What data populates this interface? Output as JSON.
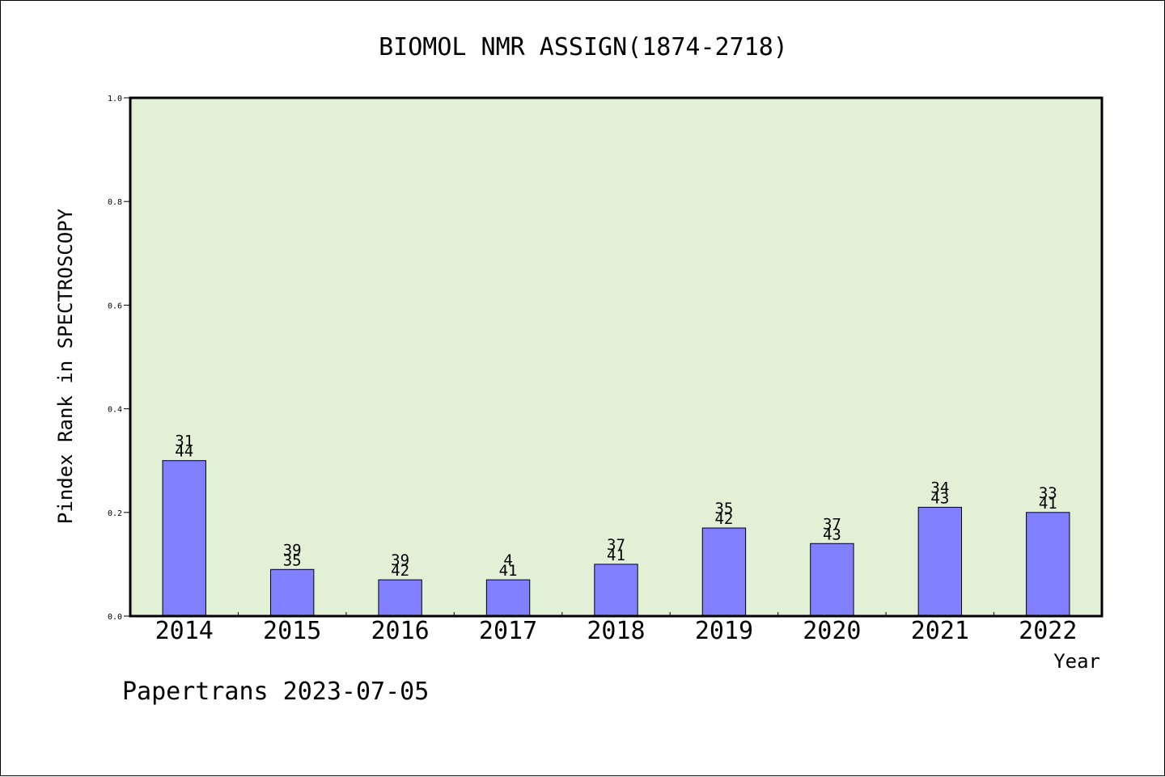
{
  "chart_data": {
    "type": "bar",
    "title": "BIOMOL NMR ASSIGN(1874-2718)",
    "xlabel": "Year",
    "ylabel": "Pindex Rank in SPECTROSCOPY",
    "ylim": [
      0,
      1.0
    ],
    "yticks": [
      "0.0",
      "0.2",
      "0.4",
      "0.6",
      "0.8",
      "1.0"
    ],
    "categories": [
      "2014",
      "2015",
      "2016",
      "2017",
      "2018",
      "2019",
      "2020",
      "2021",
      "2022"
    ],
    "values": [
      0.3,
      0.09,
      0.07,
      0.07,
      0.1,
      0.17,
      0.14,
      0.21,
      0.2
    ],
    "labels_top": [
      "31",
      "39",
      "39",
      "4",
      "37",
      "35",
      "37",
      "34",
      "33"
    ],
    "labels_bottom": [
      "44",
      "35",
      "42",
      "41",
      "41",
      "42",
      "43",
      "43",
      "41"
    ],
    "grid": false,
    "colors": {
      "plot_bg": "#e2f0d6",
      "bar": "#8080ff",
      "bar_edge": "#000000"
    }
  },
  "footer": "Papertrans 2023-07-05"
}
